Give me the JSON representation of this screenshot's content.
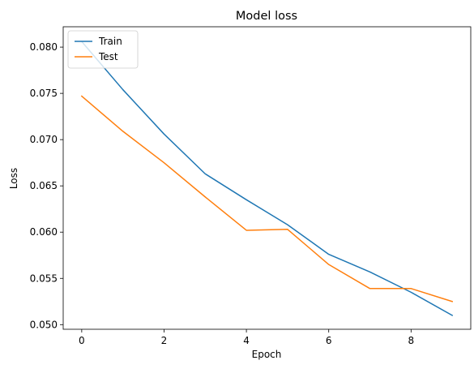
{
  "chart_data": {
    "type": "line",
    "title": "Model loss",
    "xlabel": "Epoch",
    "ylabel": "Loss",
    "xlim": [
      -0.45,
      9.45
    ],
    "ylim": [
      0.0495,
      0.0822
    ],
    "x_ticks": [
      0,
      2,
      4,
      6,
      8
    ],
    "y_ticks": [
      0.05,
      0.055,
      0.06,
      0.065,
      0.07,
      0.075,
      0.08
    ],
    "y_tick_labels": [
      "0.050",
      "0.055",
      "0.060",
      "0.065",
      "0.070",
      "0.075",
      "0.080"
    ],
    "x": [
      0,
      1,
      2,
      3,
      4,
      5,
      6,
      7,
      8,
      9
    ],
    "series": [
      {
        "name": "Train",
        "color": "#1f77b4",
        "values": [
          0.0806,
          0.0754,
          0.0706,
          0.0663,
          0.0635,
          0.0608,
          0.0576,
          0.0557,
          0.0535,
          0.051
        ]
      },
      {
        "name": "Test",
        "color": "#ff7f0e",
        "values": [
          0.0747,
          0.0709,
          0.0675,
          0.0638,
          0.0602,
          0.0603,
          0.0565,
          0.0539,
          0.0539,
          0.0525
        ]
      }
    ],
    "grid": false,
    "legend_position": "upper-left"
  }
}
